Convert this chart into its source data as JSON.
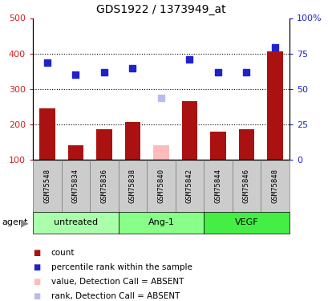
{
  "title": "GDS1922 / 1373949_at",
  "samples": [
    "GSM75548",
    "GSM75834",
    "GSM75836",
    "GSM75838",
    "GSM75840",
    "GSM75842",
    "GSM75844",
    "GSM75846",
    "GSM75848"
  ],
  "bar_values": [
    245,
    140,
    185,
    207,
    null,
    265,
    180,
    185,
    405
  ],
  "bar_absent_values": [
    null,
    null,
    null,
    null,
    140,
    null,
    null,
    null,
    null
  ],
  "rank_values": [
    375,
    340,
    347,
    358,
    null,
    382,
    346,
    346,
    417
  ],
  "rank_absent_values": [
    null,
    null,
    null,
    null,
    275,
    null,
    null,
    null,
    null
  ],
  "bar_color": "#aa1111",
  "bar_absent_color": "#ffbbbb",
  "rank_color": "#2222cc",
  "rank_absent_color": "#bbbbee",
  "groups": [
    {
      "label": "untreated",
      "start": 0,
      "end": 2,
      "color": "#aaffaa"
    },
    {
      "label": "Ang-1",
      "start": 3,
      "end": 5,
      "color": "#88ff88"
    },
    {
      "label": "VEGF",
      "start": 6,
      "end": 8,
      "color": "#44ee44"
    }
  ],
  "ylim_left": [
    100,
    500
  ],
  "ylim_right": [
    0,
    100
  ],
  "yticks_left": [
    100,
    200,
    300,
    400,
    500
  ],
  "yticks_right": [
    0,
    25,
    50,
    75,
    100
  ],
  "ytick_labels_right": [
    "0",
    "25",
    "50",
    "75",
    "100%"
  ],
  "hlines": [
    200,
    300,
    400
  ],
  "ylabel_left_color": "#cc2222",
  "ylabel_right_color": "#2222cc",
  "legend_items": [
    {
      "label": "count",
      "color": "#aa1111"
    },
    {
      "label": "percentile rank within the sample",
      "color": "#2222cc"
    },
    {
      "label": "value, Detection Call = ABSENT",
      "color": "#ffbbbb"
    },
    {
      "label": "rank, Detection Call = ABSENT",
      "color": "#bbbbee"
    }
  ],
  "bar_width": 0.55,
  "marker_size": 6,
  "tick_label_area_color": "#cccccc"
}
